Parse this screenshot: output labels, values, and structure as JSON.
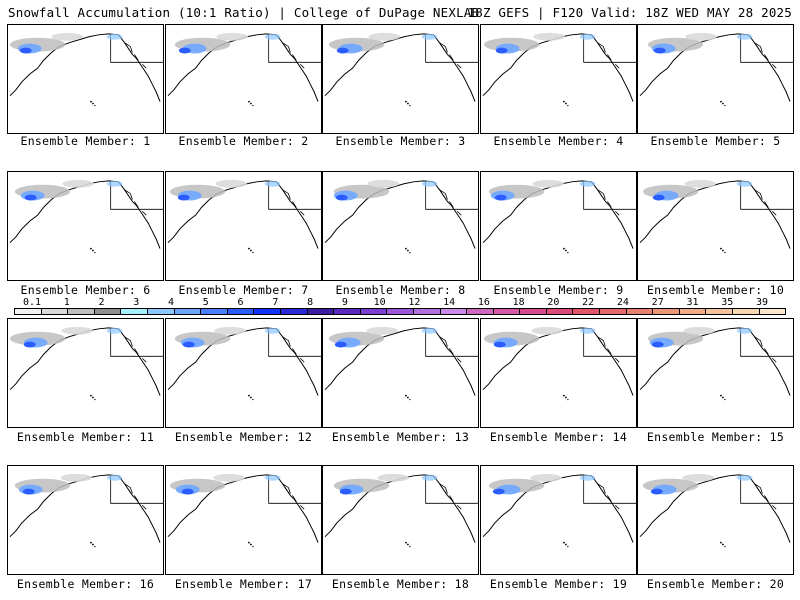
{
  "header": {
    "left": "Snowfall Accumulation (10:1 Ratio) | College of DuPage NEXLAB",
    "right": "18Z GEFS | F120 Valid: 18Z WED MAY 28 2025"
  },
  "panels": [
    {
      "label": "Ensemble Member: 1"
    },
    {
      "label": "Ensemble Member: 2"
    },
    {
      "label": "Ensemble Member: 3"
    },
    {
      "label": "Ensemble Member: 4"
    },
    {
      "label": "Ensemble Member: 5"
    },
    {
      "label": "Ensemble Member: 6"
    },
    {
      "label": "Ensemble Member: 7"
    },
    {
      "label": "Ensemble Member: 8"
    },
    {
      "label": "Ensemble Member: 9"
    },
    {
      "label": "Ensemble Member: 10"
    },
    {
      "label": "Ensemble Member: 11"
    },
    {
      "label": "Ensemble Member: 12"
    },
    {
      "label": "Ensemble Member: 13"
    },
    {
      "label": "Ensemble Member: 14"
    },
    {
      "label": "Ensemble Member: 15"
    },
    {
      "label": "Ensemble Member: 16"
    },
    {
      "label": "Ensemble Member: 17"
    },
    {
      "label": "Ensemble Member: 18"
    },
    {
      "label": "Ensemble Member: 19"
    },
    {
      "label": "Ensemble Member: 20"
    }
  ],
  "colorbar": {
    "ticks": [
      "0.1",
      "1",
      "2",
      "3",
      "4",
      "5",
      "6",
      "7",
      "8",
      "9",
      "10",
      "12",
      "14",
      "16",
      "18",
      "20",
      "22",
      "24",
      "27",
      "31",
      "35",
      "39"
    ],
    "colors": [
      "#f2f2f2",
      "#d9d9d9",
      "#bdbdbd",
      "#8f8f8f",
      "#a6f0ff",
      "#8cc8ff",
      "#6ea6ff",
      "#4a7fff",
      "#2a5cff",
      "#1030ff",
      "#2a2ad8",
      "#3b1fa0",
      "#5a2ac0",
      "#7a3fd0",
      "#9a55d8",
      "#b070e0",
      "#c98ae8",
      "#cf68c0",
      "#d45aa8",
      "#d84a90",
      "#dc4a78",
      "#e0556a",
      "#e46a6a",
      "#e88070",
      "#ec9678",
      "#f0ac88",
      "#f4c29c",
      "#f8d8b4",
      "#fce8cc"
    ]
  }
}
